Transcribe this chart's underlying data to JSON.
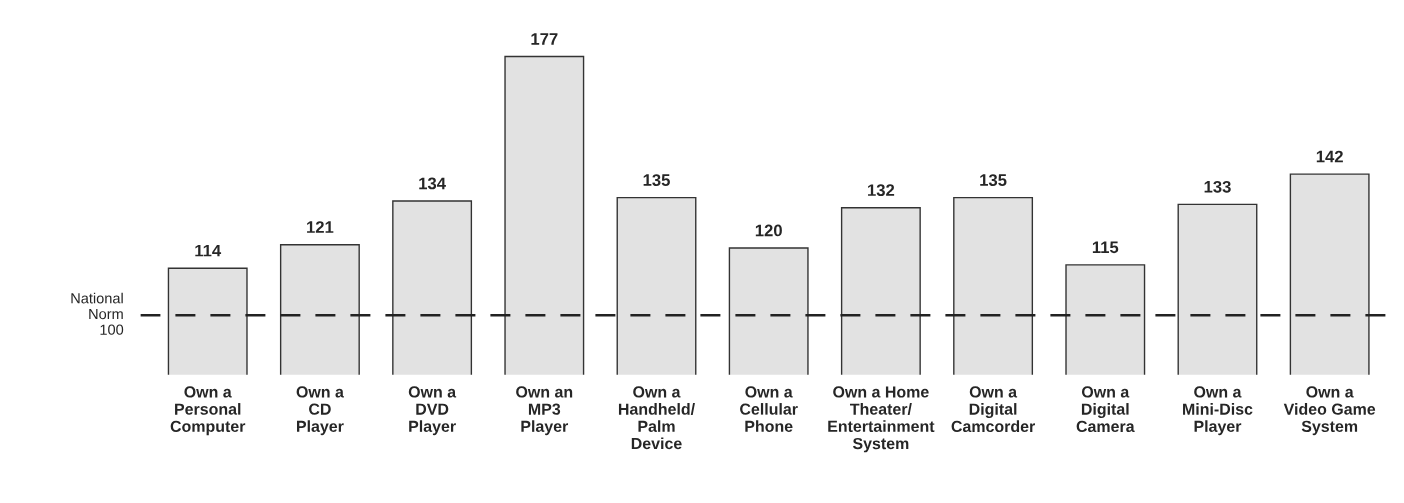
{
  "chart_data": {
    "type": "bar",
    "categories": [
      "Own a\nPersonal\nComputer",
      "Own a\nCD\nPlayer",
      "Own a\nDVD\nPlayer",
      "Own an\nMP3\nPlayer",
      "Own a\nHandheld/\nPalm\nDevice",
      "Own a\nCellular\nPhone",
      "Own a Home\nTheater/\nEntertainment\nSystem",
      "Own a\nDigital\nCamcorder",
      "Own a\nDigital\nCamera",
      "Own a\nMini-Disc\nPlayer",
      "Own a\nVideo Game\nSystem"
    ],
    "values": [
      114,
      121,
      134,
      177,
      135,
      120,
      132,
      135,
      115,
      133,
      142
    ],
    "color": "#e2e2e2",
    "tick_labels": "x",
    "data_labels": true,
    "ref_lines": [
      {
        "axis": "y",
        "value": 100,
        "label": "National\nNorm\n100",
        "color": "#222222",
        "line_style": "dashed"
      }
    ]
  }
}
